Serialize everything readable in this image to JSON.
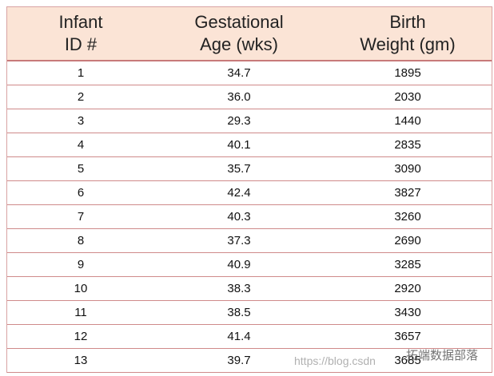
{
  "table": {
    "header": [
      [
        "Infant",
        "ID #"
      ],
      [
        "Gestational",
        "Age (wks)"
      ],
      [
        "Birth",
        "Weight (gm)"
      ]
    ],
    "rows": [
      [
        "1",
        "34.7",
        "1895"
      ],
      [
        "2",
        "36.0",
        "2030"
      ],
      [
        "3",
        "29.3",
        "1440"
      ],
      [
        "4",
        "40.1",
        "2835"
      ],
      [
        "5",
        "35.7",
        "3090"
      ],
      [
        "6",
        "42.4",
        "3827"
      ],
      [
        "7",
        "40.3",
        "3260"
      ],
      [
        "8",
        "37.3",
        "2690"
      ],
      [
        "9",
        "40.9",
        "3285"
      ],
      [
        "10",
        "38.3",
        "2920"
      ],
      [
        "11",
        "38.5",
        "3430"
      ],
      [
        "12",
        "41.4",
        "3657"
      ],
      [
        "13",
        "39.7",
        "3685"
      ]
    ]
  },
  "watermark": {
    "url": "https://blog.csdn",
    "brand": "拓端数据部落"
  }
}
